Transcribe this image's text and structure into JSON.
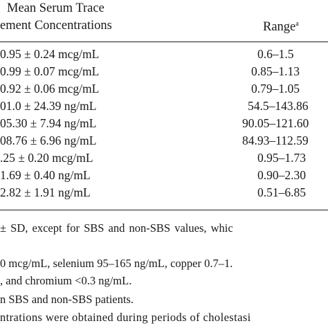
{
  "header": {
    "line1": "Mean Serum Trace",
    "line2": "ement Concentrations",
    "range_label": "Range",
    "range_sup": "a"
  },
  "rows": [
    {
      "value": "0.95 ± 0.24 mcg/mL",
      "range": "0.6–1.5"
    },
    {
      "value": "0.99 ± 0.07 mcg/mL",
      "range": "0.85–1.13"
    },
    {
      "value": "0.92 ± 0.06 mcg/mL",
      "range": "0.79–1.05"
    },
    {
      "value": "01.0 ± 24.39 ng/mL",
      "range": "54.5–143.86"
    },
    {
      "value": "05.30 ± 7.94 ng/mL",
      "range": "90.05–121.60"
    },
    {
      "value": "08.76 ± 6.96 ng/mL",
      "range": "84.93–112.59"
    },
    {
      "value": ".25 ± 0.20 mcg/mL",
      "range": "0.95–1.73"
    },
    {
      "value": "1.69 ± 0.40 ng/mL",
      "range": "0.90–2.30"
    },
    {
      "value": "2.82 ± 1.91 ng/mL",
      "range": "0.51–6.85"
    }
  ],
  "footnotes": [
    "± SD, except for SBS and non-SBS values, whic",
    "0 mcg/mL, selenium 95–165 ng/mL, copper 0.7–1.",
    ", and chromium <0.3 ng/mL.",
    "n SBS and non-SBS patients.",
    "ntrations were obtained during periods of cholestasi"
  ]
}
